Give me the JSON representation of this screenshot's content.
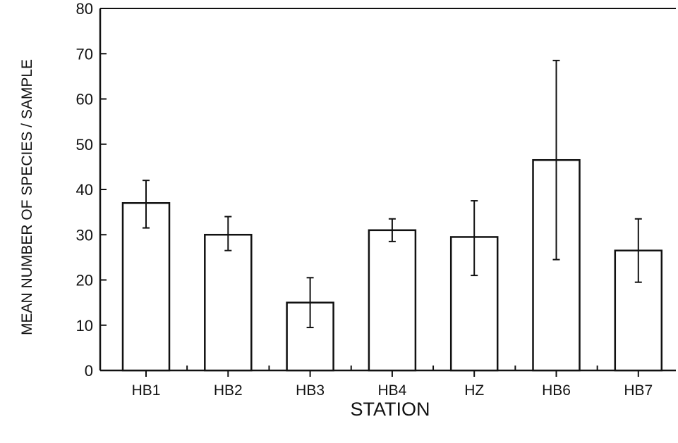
{
  "chart_data": {
    "type": "bar",
    "title": "",
    "xlabel": "STATION",
    "ylabel": "MEAN NUMBER OF SPECIES / SAMPLE",
    "ylim": [
      0,
      80
    ],
    "yticks": [
      0,
      10,
      20,
      30,
      40,
      50,
      60,
      70,
      80
    ],
    "grid": false,
    "legend": "none",
    "categories": [
      "HB1",
      "HB2",
      "HB3",
      "HB4",
      "HZ",
      "HB6",
      "HB7"
    ],
    "values": [
      37,
      30,
      15,
      31,
      29.5,
      46.5,
      26.5
    ],
    "error_low": [
      31.5,
      26.5,
      9.5,
      28.5,
      21,
      24.5,
      19.5
    ],
    "error_high": [
      42,
      34,
      20.5,
      33.5,
      37.5,
      68.5,
      33.5
    ],
    "colors": {
      "bar_fill": "#ffffff",
      "stroke": "#111111"
    }
  }
}
